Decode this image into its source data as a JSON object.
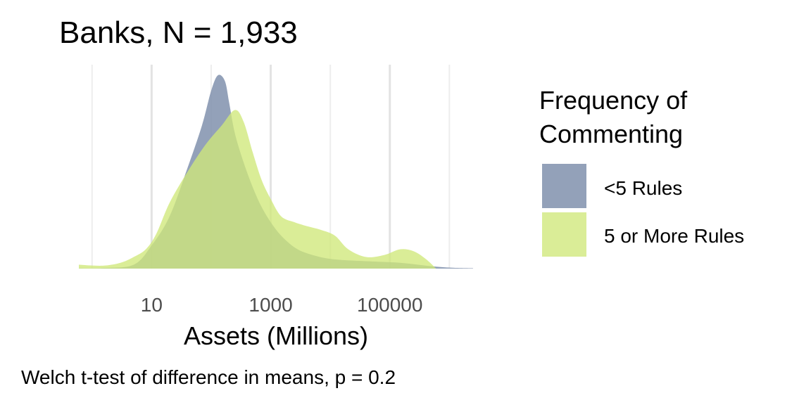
{
  "chart_data": {
    "type": "area",
    "subtype": "density",
    "title": "Banks, N = 1,933",
    "xlabel": "Assets (Millions)",
    "ylabel": "",
    "caption": "Welch t-test of difference in means, p = 0.2",
    "x_scale": "log10",
    "xlim": [
      0.6,
      2500000
    ],
    "x_ticks": [
      10,
      1000,
      100000
    ],
    "x_tick_labels": [
      "10",
      "1000",
      "100000"
    ],
    "y_axis_visible": false,
    "grid": "vertical major and minor gridlines",
    "legend": {
      "title": "Frequency of Commenting",
      "title_lines": [
        "Frequency of",
        "Commenting"
      ],
      "position": "right"
    },
    "series": [
      {
        "name": "<5 Rules",
        "color": "#8090ad",
        "x": [
          0.6,
          1.5,
          5,
          10,
          20,
          40,
          70,
          100,
          130,
          170,
          200,
          250,
          350,
          500,
          700,
          1000,
          1500,
          2500,
          4000,
          8000,
          15000,
          30000,
          70000,
          150000,
          300000,
          600000,
          1200000,
          2500000
        ],
        "density": [
          0.002,
          0.003,
          0.02,
          0.12,
          0.27,
          0.52,
          0.74,
          0.92,
          1.0,
          0.97,
          0.86,
          0.7,
          0.55,
          0.42,
          0.32,
          0.24,
          0.17,
          0.11,
          0.08,
          0.055,
          0.045,
          0.04,
          0.035,
          0.03,
          0.02,
          0.01,
          0.004,
          0.002
        ]
      },
      {
        "name": "5 or More Rules",
        "color": "#d0e87a",
        "x": [
          0.6,
          1.5,
          3,
          5,
          8,
          12,
          20,
          40,
          80,
          150,
          250,
          350,
          500,
          700,
          1000,
          1500,
          2500,
          4000,
          7000,
          12000,
          20000,
          40000,
          80000,
          150000,
          250000,
          400000,
          600000
        ],
        "density": [
          0.02,
          0.015,
          0.03,
          0.06,
          0.1,
          0.18,
          0.34,
          0.5,
          0.64,
          0.74,
          0.82,
          0.76,
          0.6,
          0.46,
          0.36,
          0.27,
          0.24,
          0.22,
          0.2,
          0.17,
          0.1,
          0.06,
          0.07,
          0.1,
          0.09,
          0.05,
          0.0
        ]
      }
    ]
  }
}
